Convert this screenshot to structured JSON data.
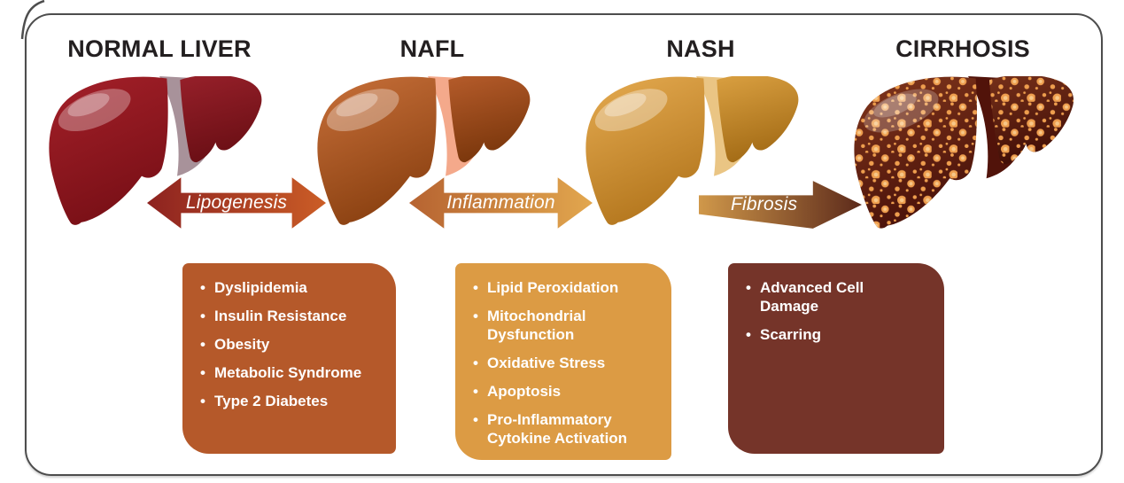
{
  "theme": {
    "frame_border_color": "#4d4d4d",
    "title_color": "#231f20",
    "bullet_text_color": "#ffffff"
  },
  "stages": [
    {
      "title": "NORMAL LIVER"
    },
    {
      "title": "NAFL"
    },
    {
      "title": "NASH"
    },
    {
      "title": "CIRRHOSIS"
    }
  ],
  "arrows": [
    {
      "label": "Lipogenesis",
      "direction": "both",
      "gradient": [
        "#8d2220",
        "#cb5d26"
      ]
    },
    {
      "label": "Inflammation",
      "direction": "both",
      "gradient": [
        "#b66331",
        "#e2a74e"
      ]
    },
    {
      "label": "Fibrosis",
      "direction": "right",
      "gradient": [
        "#d0984a",
        "#5c2a1b"
      ]
    }
  ],
  "boxes": [
    {
      "color": "#b5592a",
      "items": [
        "Dyslipidemia",
        "Insulin Resistance",
        "Obesity",
        "Metabolic Syndrome",
        "Type 2 Diabetes"
      ]
    },
    {
      "color": "#dc9b44",
      "items": [
        "Lipid Peroxidation",
        "Mitochondrial Dysfunction",
        "Oxidative Stress",
        "Apoptosis",
        "Pro-Inflammatory Cytokine Activation"
      ]
    },
    {
      "color": "#753429",
      "items": [
        "Advanced Cell Damage",
        "Scarring"
      ]
    }
  ],
  "livers": [
    {
      "name": "normal-liver",
      "left_top": "#a42029",
      "left_bottom": "#7a1017",
      "right_top": "#97202a",
      "right_bottom": "#6b0f15",
      "band": "#a8929a",
      "highlight_opacity": 0.3
    },
    {
      "name": "nafl-liver",
      "left_top": "#c8703a",
      "left_bottom": "#8c4212",
      "right_top": "#b65c2b",
      "right_bottom": "#7b370c",
      "band": "#f4a98b",
      "highlight_opacity": 0.32
    },
    {
      "name": "nash-liver",
      "left_top": "#e5ab51",
      "left_bottom": "#b5781f",
      "right_top": "#daa041",
      "right_bottom": "#a46c16",
      "band": "#eac584",
      "highlight_opacity": 0.34
    },
    {
      "name": "cirrhosis-liver",
      "left_top": "#82371d",
      "left_bottom": "#4a120a",
      "right_top": "#76301a",
      "right_bottom": "#420f07",
      "band": "#51130a",
      "highlight_opacity": 0.22,
      "spot": "#ee9e4e",
      "spot_light": "#f7c788"
    }
  ]
}
